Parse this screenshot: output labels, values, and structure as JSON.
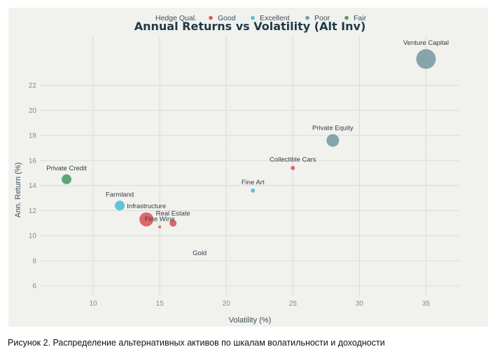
{
  "caption": "Рисунок 2. Распределение альтернативных активов по шкалам волатильности и доходности",
  "chart_data": {
    "type": "scatter",
    "title": "Annual Returns vs Volatility (Alt Inv)",
    "xlabel": "Volatility (%)",
    "ylabel": "Ann. Return (%)",
    "xlim": [
      6,
      37.5
    ],
    "ylim": [
      5.2,
      25.9
    ],
    "xticks": [
      10,
      15,
      20,
      25,
      30,
      35
    ],
    "yticks": [
      6,
      8,
      10,
      12,
      14,
      16,
      18,
      20,
      22
    ],
    "grid": true,
    "legend": {
      "title": "Hedge Qual.",
      "placement": "top-center",
      "entries": [
        {
          "name": "Good",
          "color": "#d9595b"
        },
        {
          "name": "Excellent",
          "color": "#4fc0d8"
        },
        {
          "name": "Poor",
          "color": "#7a9ba3"
        },
        {
          "name": "Fair",
          "color": "#4e9e6e"
        }
      ]
    },
    "points": [
      {
        "name": "Venture Capital",
        "x": 35,
        "y": 24.1,
        "category": "Poor",
        "size": 14
      },
      {
        "name": "Private Equity",
        "x": 28,
        "y": 17.6,
        "category": "Poor",
        "size": 9
      },
      {
        "name": "Collectible Cars",
        "x": 25,
        "y": 15.4,
        "category": "Good",
        "size": 3
      },
      {
        "name": "Fine Art",
        "x": 22,
        "y": 13.6,
        "category": "Excellent",
        "size": 3
      },
      {
        "name": "Private Credit",
        "x": 8,
        "y": 14.5,
        "category": "Fair",
        "size": 7
      },
      {
        "name": "Farmland",
        "x": 12,
        "y": 12.4,
        "category": "Excellent",
        "size": 7
      },
      {
        "name": "Infrastructure",
        "x": 14,
        "y": 11.3,
        "category": "Good",
        "size": 10
      },
      {
        "name": "Real Estate",
        "x": 16,
        "y": 11.0,
        "category": "Good",
        "size": 5
      },
      {
        "name": "Fine Wine",
        "x": 15,
        "y": 10.7,
        "category": "Good",
        "size": 2
      },
      {
        "name": "Gold",
        "x": 18,
        "y": 8.1,
        "category": "Poor",
        "size": 0
      }
    ]
  }
}
